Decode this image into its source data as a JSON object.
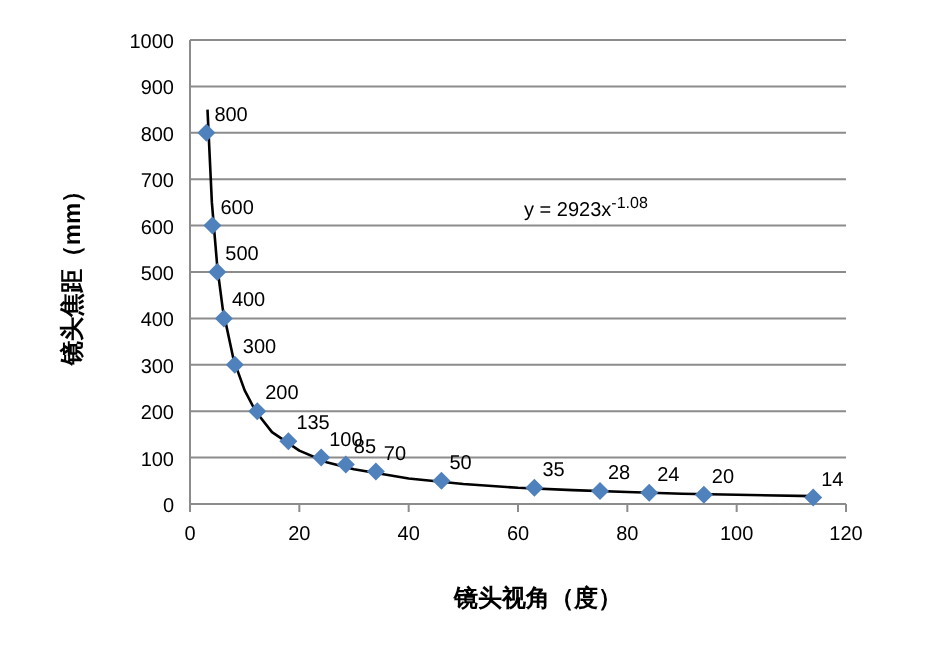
{
  "chart_data": {
    "type": "scatter",
    "xlabel": "镜头视角（度）",
    "ylabel": "镜头焦距（mm）",
    "annotations": [
      "y = 2923x$^{-1.08}$"
    ],
    "xlim": [
      0,
      120
    ],
    "xticks": [
      0,
      20,
      40,
      60,
      80,
      100,
      120
    ],
    "ylim": [
      0,
      1000
    ],
    "yticks": [
      0,
      100,
      200,
      300,
      400,
      500,
      600,
      700,
      800,
      900,
      1000
    ],
    "grid": "y",
    "marker": "diamond",
    "series": [
      {
        "color": "#4f81bd",
        "x": [
          3,
          4.1,
          5,
          6.2,
          8.2,
          12.3,
          18,
          24,
          28.5,
          34,
          46,
          63,
          75,
          84,
          94,
          114
        ],
        "values": [
          800,
          600,
          500,
          400,
          300,
          200,
          135,
          100,
          85,
          70,
          50,
          35,
          28,
          24,
          20,
          14
        ],
        "value_labels": [
          "800",
          "600",
          "500",
          "400",
          "300",
          "200",
          "135",
          "100",
          "85",
          "70",
          "50",
          "35",
          "28",
          "24",
          "20",
          "14"
        ]
      },
      {
        "type": "line",
        "color": "#000000",
        "marker": "none",
        "x": [
          3.2,
          4,
          5,
          6,
          8,
          10,
          12,
          15,
          20,
          25,
          30,
          40,
          50,
          60,
          70,
          80,
          90,
          100,
          114
        ],
        "values": [
          850,
          650,
          510,
          420,
          310,
          245,
          200,
          155,
          115,
          90,
          75,
          55,
          43,
          35,
          30,
          26,
          22,
          20,
          17
        ]
      }
    ]
  }
}
